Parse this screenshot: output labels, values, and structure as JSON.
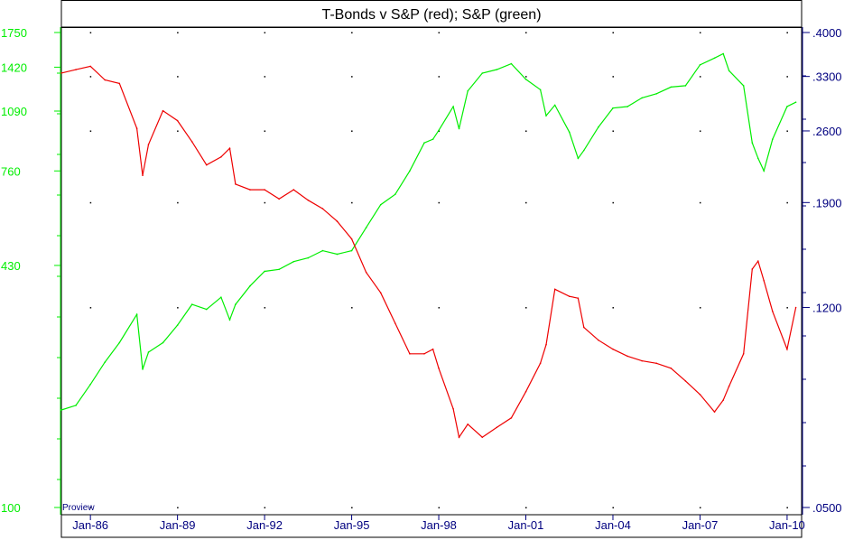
{
  "chart_data": {
    "type": "line",
    "title": "T-Bonds v S&P (red); S&P (green)",
    "watermark": "Proview",
    "x_tick_labels": [
      "Jan-86",
      "Jan-89",
      "Jan-92",
      "Jan-95",
      "Jan-98",
      "Jan-01",
      "Jan-04",
      "Jan-07",
      "Jan-10"
    ],
    "x_range": [
      1985.0,
      2010.5
    ],
    "left_axis": {
      "scale": "log",
      "range": [
        100,
        1750
      ],
      "tick_labels": [
        "1750",
        "1420",
        "1090",
        "760",
        "430",
        "100"
      ],
      "tick_values": [
        1750,
        1420,
        1090,
        760,
        430,
        100
      ]
    },
    "right_axis": {
      "scale": "log",
      "range": [
        0.05,
        0.4
      ],
      "tick_labels": [
        ".4000",
        ".3300",
        ".2600",
        ".1900",
        ".1200",
        ".0500"
      ],
      "tick_values": [
        0.4,
        0.33,
        0.26,
        0.19,
        0.12,
        0.05
      ]
    },
    "colors": {
      "sp": "#00ee00",
      "ratio": "#ee0000",
      "right_axis": "#000080",
      "frame": "#000000"
    },
    "grid": "dotted",
    "series": [
      {
        "axis": "left",
        "color": "#00ee00",
        "x": [
          1985.0,
          1985.5,
          1986.0,
          1986.5,
          1987.0,
          1987.6,
          1987.8,
          1988.0,
          1988.5,
          1989.0,
          1989.5,
          1990.0,
          1990.5,
          1990.8,
          1991.0,
          1991.5,
          1992.0,
          1992.5,
          1993.0,
          1993.5,
          1994.0,
          1994.5,
          1995.0,
          1995.5,
          1996.0,
          1996.5,
          1997.0,
          1997.5,
          1997.8,
          1998.0,
          1998.5,
          1998.7,
          1999.0,
          1999.5,
          2000.0,
          2000.5,
          2001.0,
          2001.5,
          2001.7,
          2002.0,
          2002.5,
          2002.8,
          2003.0,
          2003.5,
          2004.0,
          2004.5,
          2005.0,
          2005.5,
          2006.0,
          2006.5,
          2007.0,
          2007.5,
          2007.8,
          2008.0,
          2008.5,
          2008.8,
          2009.0,
          2009.2,
          2009.5,
          2010.0,
          2010.3
        ],
        "y": [
          180,
          185,
          210,
          240,
          270,
          320,
          230,
          255,
          270,
          300,
          340,
          330,
          355,
          310,
          340,
          380,
          415,
          420,
          440,
          450,
          470,
          460,
          470,
          540,
          620,
          660,
          760,
          900,
          920,
          970,
          1120,
          980,
          1230,
          1370,
          1400,
          1450,
          1320,
          1240,
          1060,
          1130,
          960,
          820,
          860,
          990,
          1110,
          1120,
          1180,
          1210,
          1260,
          1270,
          1440,
          1500,
          1540,
          1390,
          1270,
          900,
          820,
          760,
          920,
          1120,
          1150
        ]
      },
      {
        "axis": "right",
        "color": "#ee0000",
        "x": [
          1985.0,
          1985.5,
          1986.0,
          1986.5,
          1987.0,
          1987.6,
          1987.8,
          1988.0,
          1988.5,
          1989.0,
          1989.5,
          1990.0,
          1990.5,
          1990.8,
          1991.0,
          1991.5,
          1992.0,
          1992.5,
          1993.0,
          1993.5,
          1994.0,
          1994.5,
          1995.0,
          1995.5,
          1996.0,
          1996.5,
          1997.0,
          1997.5,
          1997.8,
          1998.0,
          1998.5,
          1998.7,
          1999.0,
          1999.5,
          2000.0,
          2000.5,
          2001.0,
          2001.5,
          2001.7,
          2002.0,
          2002.5,
          2002.8,
          2003.0,
          2003.5,
          2004.0,
          2004.5,
          2005.0,
          2005.5,
          2006.0,
          2006.5,
          2007.0,
          2007.5,
          2007.8,
          2008.0,
          2008.5,
          2008.8,
          2009.0,
          2009.2,
          2009.5,
          2010.0,
          2010.3
        ],
        "y": [
          0.335,
          0.34,
          0.345,
          0.325,
          0.32,
          0.263,
          0.214,
          0.245,
          0.284,
          0.272,
          0.248,
          0.224,
          0.232,
          0.241,
          0.206,
          0.201,
          0.201,
          0.193,
          0.201,
          0.192,
          0.185,
          0.175,
          0.162,
          0.14,
          0.128,
          0.112,
          0.098,
          0.098,
          0.1,
          0.092,
          0.077,
          0.068,
          0.072,
          0.068,
          0.071,
          0.074,
          0.083,
          0.094,
          0.102,
          0.13,
          0.126,
          0.125,
          0.11,
          0.104,
          0.1,
          0.097,
          0.095,
          0.094,
          0.092,
          0.087,
          0.082,
          0.076,
          0.08,
          0.085,
          0.098,
          0.142,
          0.147,
          0.135,
          0.118,
          0.1,
          0.12
        ]
      }
    ]
  }
}
